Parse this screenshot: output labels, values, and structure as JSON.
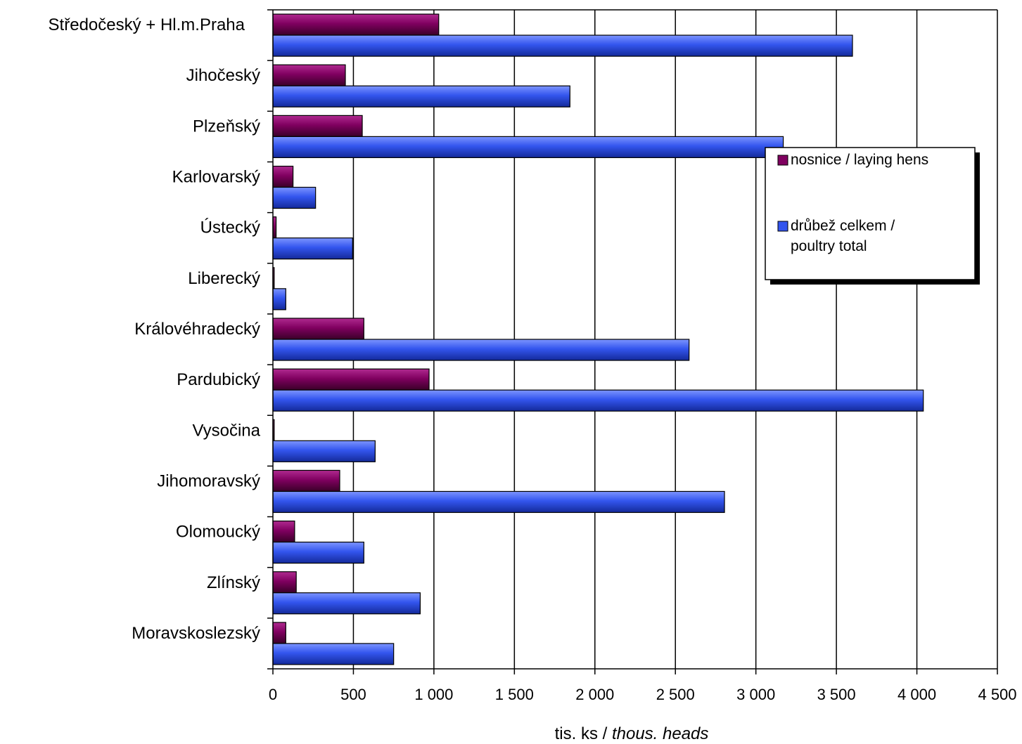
{
  "chart_data": {
    "type": "bar",
    "orientation": "horizontal",
    "categories": [
      "Středočeský + Hl.m.Praha",
      "Jihočeský",
      "Plzeňský",
      "Karlovarský",
      "Ústecký",
      "Liberecký",
      "Královéhradecký",
      "Pardubický",
      "Vysočina",
      "Jihomoravský",
      "Olomoucký",
      "Zlínský",
      "Moravskoslezský"
    ],
    "series": [
      {
        "name": "nosnice / laying hens",
        "color": "#800060",
        "values": [
          1030,
          450,
          555,
          125,
          20,
          8,
          565,
          970,
          8,
          415,
          135,
          145,
          80
        ]
      },
      {
        "name_line1": "drůbež celkem /",
        "name_line2": "poultry total",
        "color": "#3355ee",
        "values": [
          3600,
          1845,
          3170,
          265,
          495,
          80,
          2585,
          4040,
          635,
          2805,
          565,
          915,
          750
        ]
      }
    ],
    "xlim": [
      0,
      4500
    ],
    "x_ticks": [
      0,
      500,
      1000,
      1500,
      2000,
      2500,
      3000,
      3500,
      4000,
      4500
    ],
    "x_tick_labels": [
      "0",
      "500",
      "1 000",
      "1 500",
      "2 000",
      "2 500",
      "3 000",
      "3 500",
      "4 000",
      "4 500"
    ],
    "xlabel_regular": "tis. ks / ",
    "xlabel_italic": "thous. heads",
    "grid": "vertical",
    "legend_position": "right"
  }
}
